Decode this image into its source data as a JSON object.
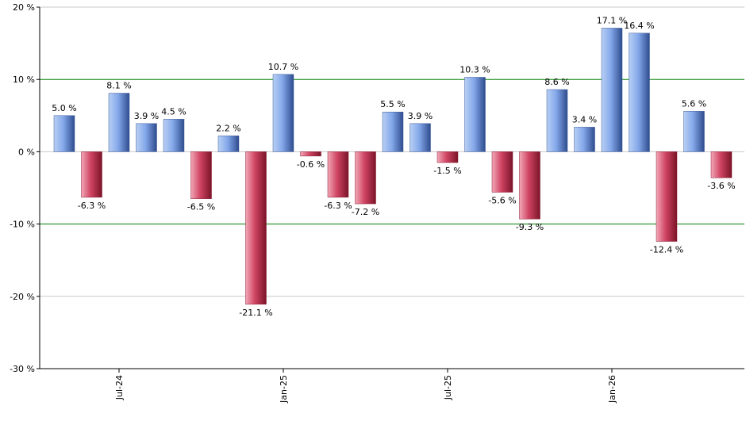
{
  "chart_data": {
    "type": "bar",
    "title": "",
    "xlabel": "",
    "ylabel": "",
    "ylim": [
      -30,
      20
    ],
    "y_ticks": [
      20,
      10,
      0,
      -10,
      -20,
      -30
    ],
    "y_tick_suffix": " %",
    "x_tick_labels": [
      {
        "label": "Jul-24",
        "index": 2
      },
      {
        "label": "Jan-25",
        "index": 8
      },
      {
        "label": "Jul-25",
        "index": 14
      },
      {
        "label": "Jan-26",
        "index": 20
      }
    ],
    "reference_lines": [
      10,
      -10
    ],
    "grid": true,
    "series": [
      {
        "values": [
          5.0,
          -6.3,
          8.1,
          3.9,
          4.5,
          -6.5,
          2.2,
          -21.1,
          10.7,
          -0.6,
          -6.3,
          -7.2,
          5.5,
          3.9,
          -1.5,
          10.3,
          -5.6,
          -9.3,
          8.6,
          3.4,
          17.1,
          16.4,
          -12.4,
          5.6,
          -3.6
        ],
        "data_labels": [
          "5.0 %",
          "-6.3 %",
          "8.1 %",
          "3.9 %",
          "4.5 %",
          "-6.5 %",
          "2.2 %",
          "-21.1 %",
          "10.7 %",
          "-0.6 %",
          "-6.3 %",
          "-7.2 %",
          "5.5 %",
          "3.9 %",
          "-1.5 %",
          "10.3 %",
          "-5.6 %",
          "-9.3 %",
          "8.6 %",
          "3.4 %",
          "17.1 %",
          "16.4 %",
          "-12.4 %",
          "5.6 %",
          "-3.6 %"
        ]
      }
    ],
    "colors": {
      "positive": "#7ea6e8",
      "negative": "#d0405c",
      "reference_line": "#008000",
      "grid": "#c8c8c8",
      "axis": "#000000"
    }
  }
}
